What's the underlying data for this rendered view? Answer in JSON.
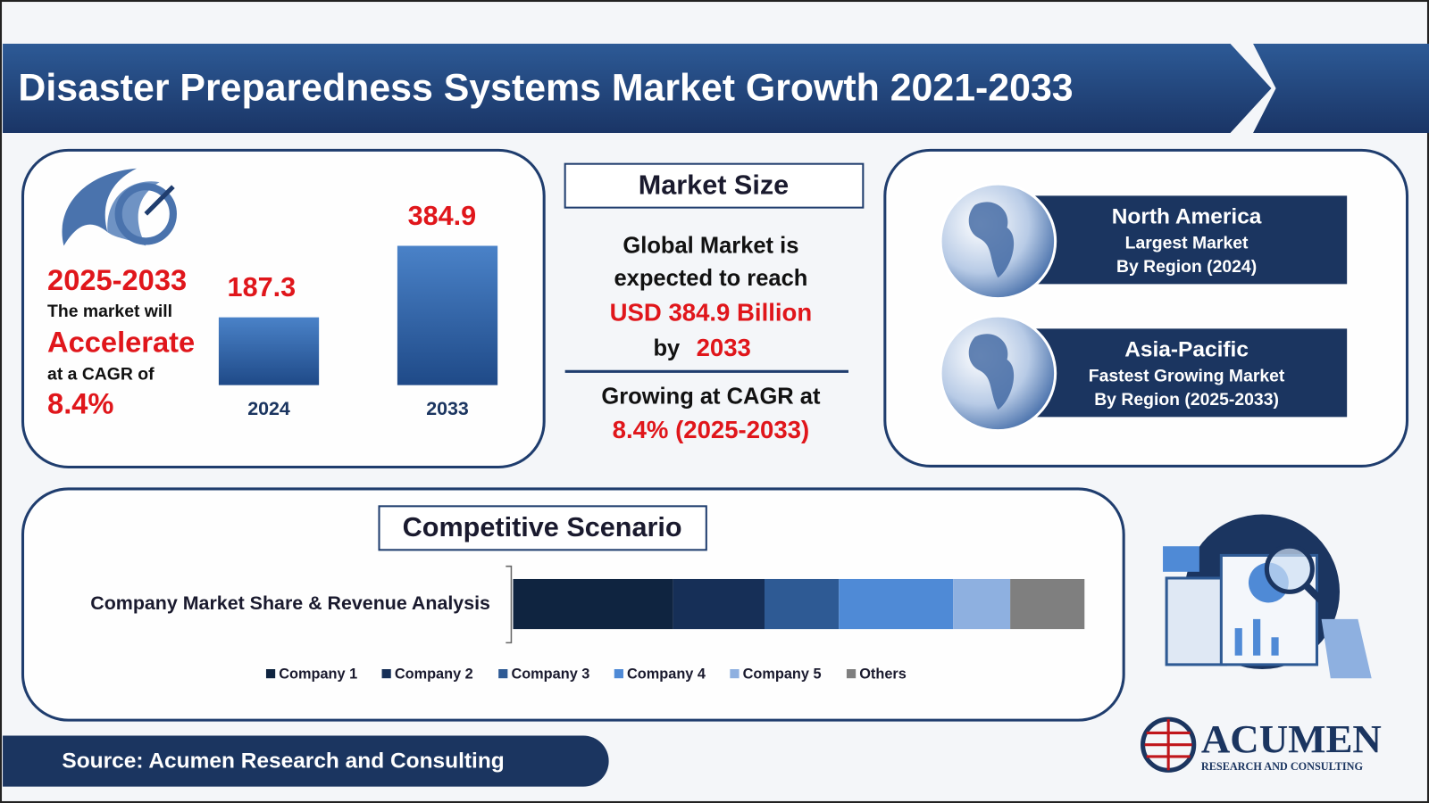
{
  "header": {
    "title": "Disaster Preparedness Systems Market Growth 2021-2033"
  },
  "growth": {
    "period": "2025-2033",
    "line1": "The market will",
    "highlight": "Accelerate",
    "line2": "at a CAGR of",
    "cagr": "8.4%"
  },
  "bars": {
    "categories": [
      "2024",
      "2033"
    ],
    "values": [
      187.3,
      384.9
    ],
    "color": "#3a6fb5"
  },
  "market_size": {
    "heading": "Market Size",
    "text1": "Global Market is",
    "text2": "expected to reach",
    "amount": "USD 384.9 Billion",
    "by": "by",
    "year": "2033",
    "growing": "Growing at CAGR at",
    "cagr": "8.4% (2025-2033)"
  },
  "regions": [
    {
      "name": "North America",
      "line1": "Largest Market",
      "line2": "By Region (2024)"
    },
    {
      "name": "Asia-Pacific",
      "line1": "Fastest Growing Market",
      "line2": "By Region (2025-2033)"
    }
  ],
  "competitive": {
    "heading": "Competitive Scenario",
    "label": "Company Market Share & Revenue Analysis",
    "series": [
      {
        "name": "Company 1",
        "color": "#0f2440",
        "value": 28
      },
      {
        "name": "Company 2",
        "color": "#162f57",
        "value": 16
      },
      {
        "name": "Company 3",
        "color": "#2e5a94",
        "value": 13
      },
      {
        "name": "Company 4",
        "color": "#4f8ad6",
        "value": 20
      },
      {
        "name": "Company 5",
        "color": "#8eb0e0",
        "value": 10
      },
      {
        "name": "Others",
        "color": "#7f7f7f",
        "value": 13
      }
    ]
  },
  "source": "Source: Acumen Research and Consulting",
  "logo": {
    "name": "ACUMEN",
    "tagline": "RESEARCH AND CONSULTING"
  }
}
